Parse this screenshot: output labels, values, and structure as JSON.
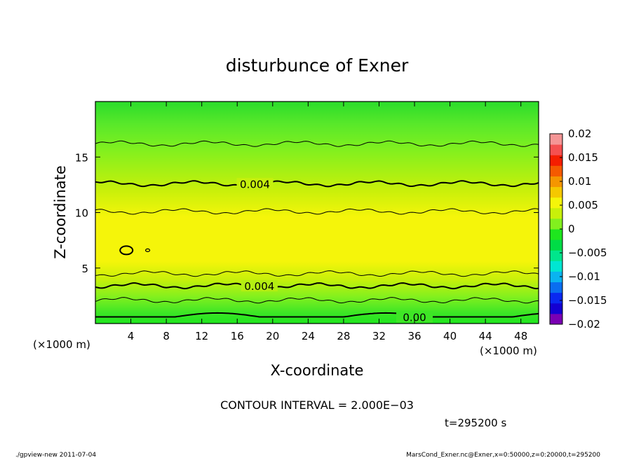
{
  "chart_data": {
    "type": "heatmap",
    "title": "disturbunce of Exner",
    "xlabel": "X-coordinate",
    "ylabel": "Z-coordinate",
    "x_unit_left": "(×1000 m)",
    "x_unit_right": "(×1000 m)",
    "xlim": [
      0,
      50
    ],
    "ylim": [
      0,
      20
    ],
    "x_ticks": [
      4,
      8,
      12,
      16,
      20,
      24,
      28,
      32,
      36,
      40,
      44,
      48
    ],
    "y_ticks": [
      5,
      10,
      15
    ],
    "colorbar": {
      "ticks": [
        0.02,
        0.015,
        0.01,
        0.005,
        0,
        -0.005,
        -0.01,
        -0.015,
        -0.02
      ],
      "tick_labels": [
        "0.02",
        "0.015",
        "0.01",
        "0.005",
        "0",
        "−0.005",
        "−0.01",
        "−0.015",
        "−0.02"
      ],
      "range": [
        -0.02,
        0.02
      ],
      "colors": [
        "#7a00b4",
        "#1400d2",
        "#0a28f0",
        "#0a6ef0",
        "#0ab4f0",
        "#00e6d2",
        "#00e68c",
        "#00dc46",
        "#1ee61e",
        "#82f01e",
        "#c8f00a",
        "#f5f50a",
        "#f5c800",
        "#f59600",
        "#f55a00",
        "#f51e00",
        "#f55050",
        "#f59696"
      ]
    },
    "contours": [
      {
        "level": 0.006,
        "z_km": 16.2,
        "weight": "thin"
      },
      {
        "level": 0.004,
        "z_km": 12.6,
        "weight": "bold",
        "label": "0.004"
      },
      {
        "level": 0.006,
        "z_km": 10.1,
        "weight": "thin"
      },
      {
        "level": 0.008,
        "z_km": 6.6,
        "weight": "bold",
        "closed": true
      },
      {
        "level": 0.006,
        "z_km": 4.5,
        "weight": "thin"
      },
      {
        "level": 0.004,
        "z_km": 3.4,
        "weight": "bold",
        "label": "0.004"
      },
      {
        "level": 0.002,
        "z_km": 2.1,
        "weight": "thin"
      },
      {
        "level": 0.0,
        "z_km": 0.6,
        "weight": "bold",
        "label": "0.00"
      }
    ],
    "contour_interval_text": "CONTOUR INTERVAL = 2.000E−03",
    "time_text": "t=295200 s"
  },
  "footer": {
    "left": "./gpview-new  2011-07-04",
    "right": "MarsCond_Exner.nc@Exner,x=0:50000,z=0:20000,t=295200"
  }
}
